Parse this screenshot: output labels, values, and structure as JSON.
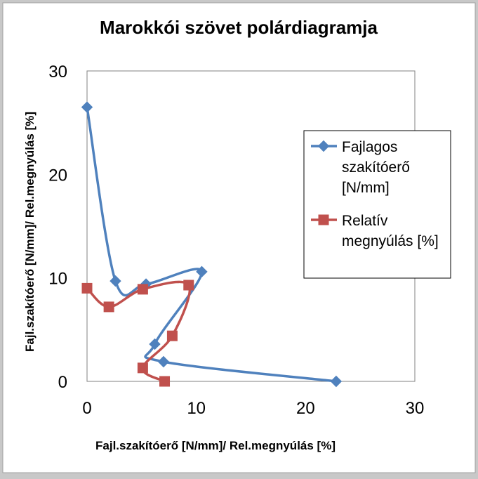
{
  "chart_data": {
    "type": "scatter",
    "title": "Marokkói szövet polárdiagramja",
    "xlabel": "Fajl.szakítóerő [N/mm]/ Rel.megnyúlás [%]",
    "ylabel": "Fajl.szakítóerő [N/mm]/ Rel.megnyúlás [%]",
    "xlim": [
      0,
      30
    ],
    "ylim": [
      0,
      30
    ],
    "x_ticks": [
      0,
      10,
      20,
      30
    ],
    "y_ticks": [
      0,
      10,
      20,
      30
    ],
    "x_tick_labels": [
      "0",
      "10",
      "20",
      "30"
    ],
    "y_tick_labels": [
      "0",
      "10",
      "20",
      "30"
    ],
    "grid": false,
    "legend_position": "right",
    "series": [
      {
        "name": "Fajlagos szakítóerő [N/mm]",
        "legend_lines": [
          "Fajlagos",
          "szakítóerő",
          "[N/mm]"
        ],
        "color": "#4f81bd",
        "marker": "diamond",
        "points": [
          [
            0,
            26.5
          ],
          [
            2.6,
            9.7
          ],
          [
            5.4,
            9.4
          ],
          [
            10.5,
            10.6
          ],
          [
            6.2,
            3.6
          ],
          [
            7.0,
            1.9
          ],
          [
            22.8,
            0
          ]
        ]
      },
      {
        "name": "Relatív megnyúlás [%]",
        "legend_lines": [
          "Relatív",
          "megnyúlás [%]"
        ],
        "color": "#c0504d",
        "marker": "square",
        "points": [
          [
            0,
            9.0
          ],
          [
            2.0,
            7.2
          ],
          [
            5.1,
            8.9
          ],
          [
            9.3,
            9.3
          ],
          [
            7.8,
            4.4
          ],
          [
            5.1,
            1.3
          ],
          [
            7.1,
            0
          ]
        ]
      }
    ]
  }
}
